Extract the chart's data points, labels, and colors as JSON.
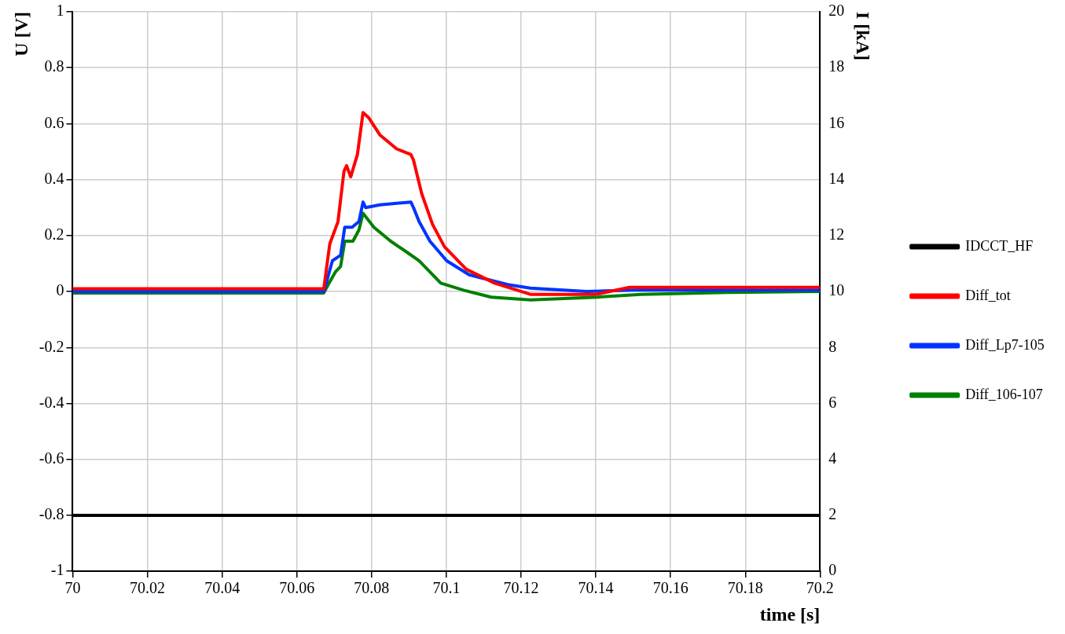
{
  "chart_data": {
    "type": "line",
    "xlabel": "time [s]",
    "ylabel": "U [V]",
    "y2label": "I [kA]",
    "xlim": [
      70,
      70.2
    ],
    "xticks": [
      70,
      70.02,
      70.04,
      70.06,
      70.08,
      70.1,
      70.12,
      70.14,
      70.16,
      70.18,
      70.2
    ],
    "ylim": [
      -1,
      1
    ],
    "yticks": [
      -1,
      -0.8,
      -0.6,
      -0.4,
      -0.2,
      0,
      0.2,
      0.4,
      0.6,
      0.8,
      1
    ],
    "y2lim": [
      0,
      20
    ],
    "y2ticks": [
      0,
      2,
      4,
      6,
      8,
      10,
      12,
      14,
      16,
      18,
      20
    ],
    "grid": true,
    "legend": "right",
    "marker": "none",
    "line_style": "solid",
    "series": [
      {
        "name": "IDCCT_HF",
        "color": "#000000",
        "axis": "y2",
        "x": [
          70,
          70.2
        ],
        "values": [
          2,
          2
        ]
      },
      {
        "name": "Diff_tot",
        "color": "#ff0000",
        "x": [
          70,
          70.0672,
          70.0688,
          70.071,
          70.0726,
          70.0733,
          70.0744,
          70.0762,
          70.0777,
          70.0793,
          70.0822,
          70.0867,
          70.0905,
          70.0912,
          70.0934,
          70.0963,
          70.0995,
          70.1053,
          70.1129,
          70.1225,
          70.14,
          70.149,
          70.2
        ],
        "values": [
          0.01,
          0.01,
          0.17,
          0.25,
          0.43,
          0.45,
          0.41,
          0.49,
          0.64,
          0.62,
          0.56,
          0.51,
          0.49,
          0.47,
          0.35,
          0.24,
          0.16,
          0.08,
          0.03,
          -0.01,
          -0.01,
          0.015,
          0.015
        ]
      },
      {
        "name": "Diff_Lp7-105",
        "color": "#0033ff",
        "x": [
          70,
          70.0672,
          70.0695,
          70.0717,
          70.0728,
          70.0748,
          70.0766,
          70.0777,
          70.0784,
          70.0822,
          70.0905,
          70.0912,
          70.0927,
          70.0956,
          70.1001,
          70.1061,
          70.1164,
          70.1225,
          70.1375,
          70.152,
          70.2
        ],
        "values": [
          0,
          0,
          0.11,
          0.13,
          0.23,
          0.23,
          0.25,
          0.32,
          0.3,
          0.31,
          0.32,
          0.3,
          0.25,
          0.18,
          0.11,
          0.06,
          0.025,
          0.012,
          0,
          0.006,
          0.005
        ]
      },
      {
        "name": "Diff_106-107",
        "color": "#008000",
        "x": [
          70,
          70.0672,
          70.0688,
          70.0703,
          70.0717,
          70.0728,
          70.075,
          70.0766,
          70.0777,
          70.0806,
          70.0851,
          70.0895,
          70.0927,
          70.0956,
          70.0985,
          70.1046,
          70.112,
          70.1225,
          70.1404,
          70.152,
          70.175,
          70.2
        ],
        "values": [
          -0.005,
          -0.005,
          0.035,
          0.07,
          0.09,
          0.18,
          0.18,
          0.22,
          0.28,
          0.23,
          0.18,
          0.14,
          0.11,
          0.07,
          0.03,
          0.005,
          -0.02,
          -0.03,
          -0.02,
          -0.01,
          -0.003,
          0
        ]
      }
    ]
  }
}
